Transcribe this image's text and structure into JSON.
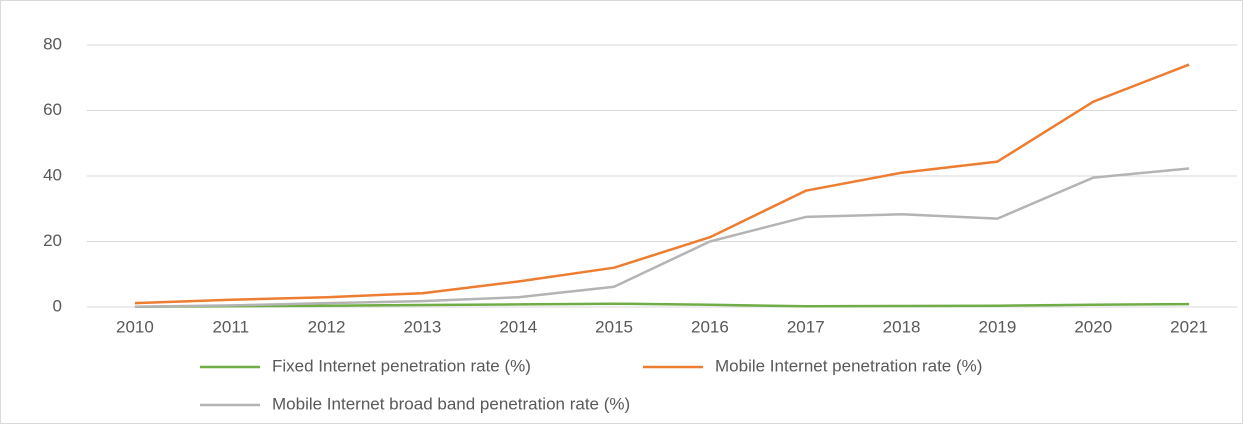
{
  "chart_data": {
    "type": "line",
    "categories": [
      "2010",
      "2011",
      "2012",
      "2013",
      "2014",
      "2015",
      "2016",
      "2017",
      "2018",
      "2019",
      "2020",
      "2021"
    ],
    "series": [
      {
        "name": "Fixed Internet penetration rate (%)",
        "color": "#70ad47",
        "values": [
          0.1,
          0.2,
          0.4,
          0.6,
          0.8,
          1.0,
          0.7,
          0.2,
          0.3,
          0.4,
          0.7,
          0.9
        ]
      },
      {
        "name": "Mobile Internet penetration rate (%)",
        "color": "#ed7d31",
        "values": [
          1.2,
          2.2,
          3.0,
          4.2,
          7.8,
          12.0,
          21.3,
          35.5,
          41.0,
          44.4,
          62.7,
          74.0
        ]
      },
      {
        "name": "Mobile Internet broad band penetration rate (%)",
        "color": "#b4b4b4",
        "values": [
          0.1,
          0.5,
          1.2,
          1.8,
          3.0,
          6.2,
          20.0,
          27.5,
          28.3,
          27.0,
          39.5,
          42.3
        ]
      }
    ],
    "ylim": [
      0,
      80
    ],
    "yticks": [
      0,
      20,
      40,
      60,
      80
    ],
    "grid": true,
    "legend": "bottom"
  }
}
